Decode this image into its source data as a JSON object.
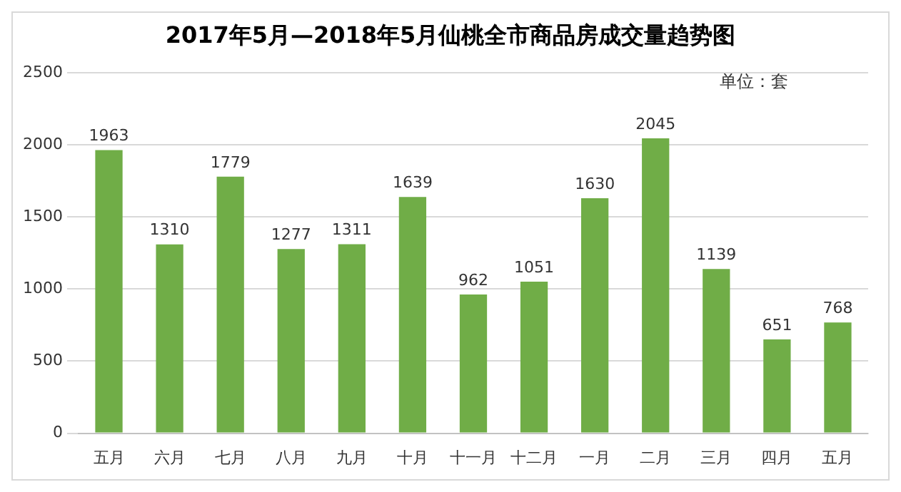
{
  "chart_data": {
    "type": "bar",
    "title": "2017年5月—2018年5月仙桃全市商品房成交量趋势图",
    "categories": [
      "五月",
      "六月",
      "七月",
      "八月",
      "九月",
      "十月",
      "十一月",
      "十二月",
      "一月",
      "二月",
      "三月",
      "四月",
      "五月"
    ],
    "values": [
      1963,
      1310,
      1779,
      1277,
      1311,
      1639,
      962,
      1051,
      1630,
      2045,
      1139,
      651,
      768
    ],
    "color": "#70ad47",
    "ylim": [
      0,
      2500
    ],
    "yticks": [
      0,
      500,
      1000,
      1500,
      2000,
      2500
    ],
    "grid": "y",
    "data_labels": true,
    "annotations": [
      "单位：套"
    ]
  }
}
